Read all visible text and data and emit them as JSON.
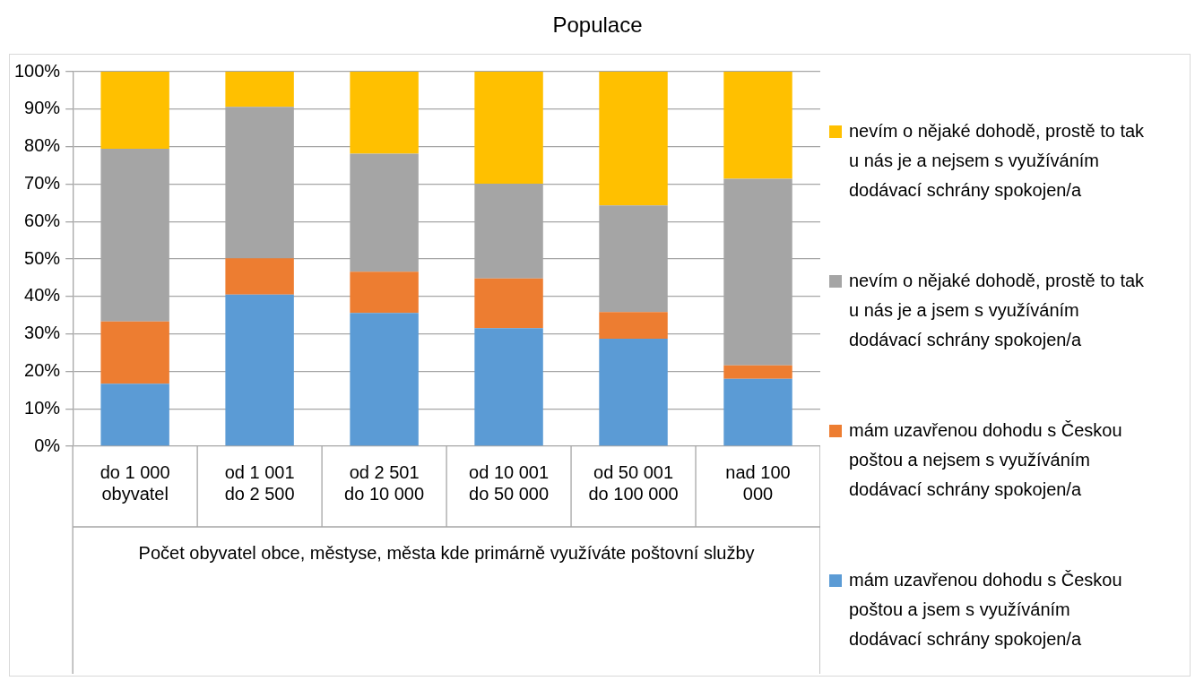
{
  "chart_data": {
    "type": "bar",
    "title": "Populace",
    "xlabel": "Počet obyvatel obce, městyse, města kde primárně využíváte poštovní služby",
    "categories": [
      "do 1 000 obyvatel",
      "od 1 001 do 2 500",
      "od 2 501 do 10 000",
      "od 10 001 do 50 000",
      "od 50 001 do 100 000",
      "nad 100 000"
    ],
    "series": [
      {
        "name": "mám uzavřenou dohodu s Českou poštou a jsem s využíváním dodávací schrány spokojen/a",
        "color": "#5b9bd5",
        "values": [
          16.7,
          40.5,
          35.6,
          31.5,
          28.7,
          18.0
        ]
      },
      {
        "name": "mám uzavřenou dohodu s Českou poštou a nejsem s využíváním dodávací schrány spokojen/a",
        "color": "#ed7d31",
        "values": [
          16.6,
          9.7,
          11.0,
          13.3,
          7.1,
          3.6
        ]
      },
      {
        "name": "nevím o nějaké dohodě, prostě to tak u nás je a jsem s využíváním dodávací schrány spokojen/a",
        "color": "#a5a5a5",
        "values": [
          46.1,
          40.4,
          31.5,
          25.3,
          28.5,
          49.8
        ]
      },
      {
        "name": "nevím o nějaké dohodě, prostě to tak u nás je a nejsem s využíváním dodávací schrány spokojen/a",
        "color": "#ffc000",
        "values": [
          20.6,
          9.4,
          21.9,
          29.9,
          35.7,
          28.6
        ]
      }
    ],
    "stacked": true,
    "ylim": [
      0,
      100
    ],
    "yticks": [
      {
        "value": 0,
        "label": "0%"
      },
      {
        "value": 10,
        "label": "10%"
      },
      {
        "value": 20,
        "label": "20%"
      },
      {
        "value": 30,
        "label": "30%"
      },
      {
        "value": 40,
        "label": "40%"
      },
      {
        "value": 50,
        "label": "50%"
      },
      {
        "value": 60,
        "label": "60%"
      },
      {
        "value": 70,
        "label": "70%"
      },
      {
        "value": 80,
        "label": "80%"
      },
      {
        "value": 90,
        "label": "90%"
      },
      {
        "value": 100,
        "label": "100%"
      }
    ],
    "grid": "y",
    "legend": "right"
  }
}
